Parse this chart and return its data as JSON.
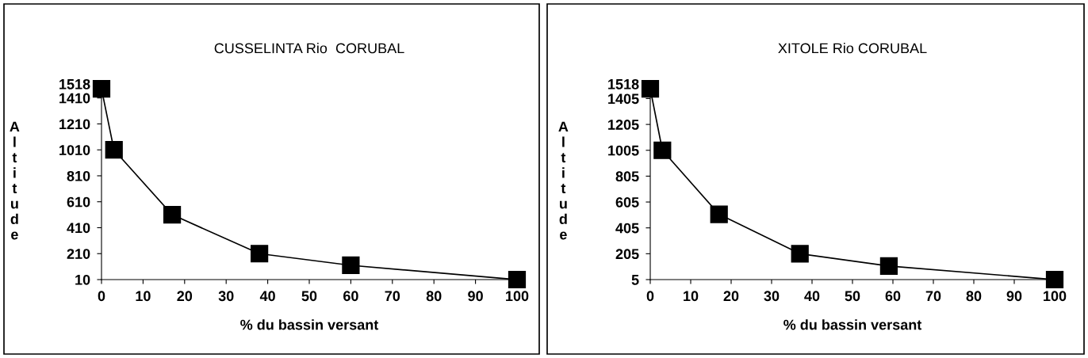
{
  "chart_data": [
    {
      "type": "line",
      "title": "CUSSELINTA Rio  CORUBAL",
      "xlabel": "% du bassin versant",
      "ylabel": "Altitude",
      "marker": "square",
      "line_style": "solid",
      "grid": false,
      "legend": false,
      "xlim": [
        0,
        100
      ],
      "xticks": [
        0,
        10,
        20,
        30,
        40,
        50,
        60,
        70,
        80,
        90,
        100
      ],
      "ylim": [
        10,
        1518
      ],
      "yticks": [
        10,
        210,
        410,
        610,
        810,
        1010,
        1210,
        1410,
        1518
      ],
      "series": [
        {
          "color": "#000000",
          "x": [
            0,
            3,
            17,
            38,
            60,
            100
          ],
          "values": [
            1480,
            1010,
            510,
            210,
            120,
            10
          ]
        }
      ]
    },
    {
      "type": "line",
      "title": "XITOLE Rio CORUBAL",
      "xlabel": "% du bassin versant",
      "ylabel": "Altitude",
      "marker": "square",
      "line_style": "solid",
      "grid": false,
      "legend": false,
      "xlim": [
        0,
        100
      ],
      "xticks": [
        0,
        10,
        20,
        30,
        40,
        50,
        60,
        70,
        80,
        90,
        100
      ],
      "ylim": [
        5,
        1518
      ],
      "yticks": [
        5,
        205,
        405,
        605,
        805,
        1005,
        1205,
        1405,
        1518
      ],
      "series": [
        {
          "color": "#000000",
          "x": [
            0,
            3,
            17,
            37,
            59,
            100
          ],
          "values": [
            1480,
            1005,
            510,
            205,
            110,
            5
          ]
        }
      ]
    }
  ]
}
